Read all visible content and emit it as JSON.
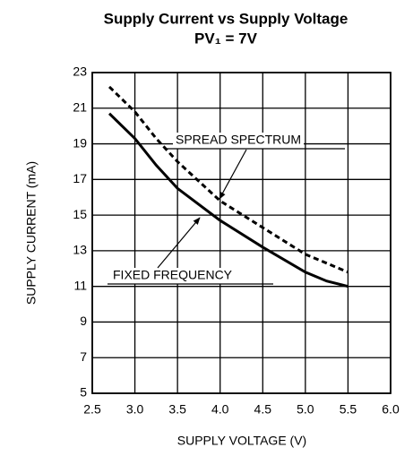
{
  "chart_data": {
    "type": "line",
    "title": "Supply Current vs Supply Voltage",
    "subtitle": "PV₁ = 7V",
    "xlabel": "SUPPLY VOLTAGE (V)",
    "ylabel": "SUPPLY CURRENT (mA)",
    "x": [
      2.7,
      3.0,
      3.25,
      3.5,
      4.0,
      4.5,
      5.0,
      5.25,
      5.5
    ],
    "series": [
      {
        "name": "FIXED FREQUENCY",
        "color": "#000000",
        "line_style": "solid",
        "values": [
          20.7,
          19.3,
          17.8,
          16.5,
          14.7,
          13.2,
          11.8,
          11.3,
          11.0
        ]
      },
      {
        "name": "SPREAD SPECTRUM",
        "color": "#000000",
        "line_style": "dashed",
        "values": [
          22.2,
          20.8,
          19.3,
          18.0,
          15.8,
          14.3,
          12.8,
          12.3,
          11.8
        ]
      }
    ],
    "xlim": [
      2.5,
      6.0
    ],
    "xticks": [
      2.5,
      {
        "value": 3,
        "label": "3.0"
      },
      3.5,
      {
        "value": 4,
        "label": "4.0"
      },
      4.5,
      {
        "value": 5,
        "label": "5.0"
      },
      5.5,
      {
        "value": 6,
        "label": "6.0"
      }
    ],
    "ylim": [
      5,
      23
    ],
    "yticks": [
      5,
      7,
      9,
      11,
      13,
      15,
      17,
      19,
      21,
      23
    ],
    "grid": true
  }
}
